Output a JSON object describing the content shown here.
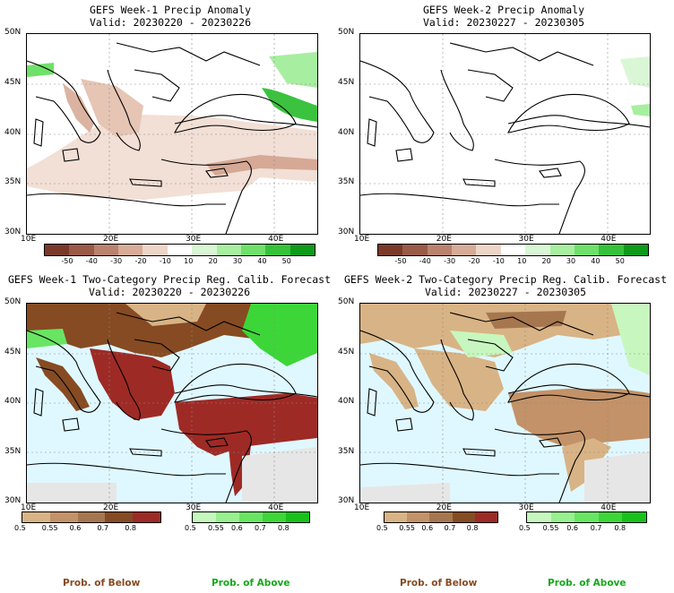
{
  "panels": [
    {
      "title": "GEFS Week-1 Precip Anomaly",
      "valid": "Valid: 20230220 - 20230226"
    },
    {
      "title": "GEFS Week-2 Precip Anomaly",
      "valid": "Valid: 20230227 - 20230305"
    },
    {
      "title": "GEFS Week-1 Two-Category Precip Reg. Calib. Forecast",
      "valid": "Valid: 20230220 - 20230226"
    },
    {
      "title": "GEFS Week-2 Two-Category Precip Reg. Calib. Forecast",
      "valid": "Valid: 20230227 - 20230305"
    }
  ],
  "axes": {
    "lat_labels": [
      "50N",
      "45N",
      "40N",
      "35N",
      "30N"
    ],
    "lon_labels": [
      "10E",
      "20E",
      "30E",
      "40E"
    ]
  },
  "anomaly_colorbar": {
    "labels": [
      "-50",
      "-40",
      "-30",
      "-20",
      "-10",
      "10",
      "20",
      "30",
      "40",
      "50"
    ],
    "colors": [
      "#7a3a2a",
      "#9a5a48",
      "#b9836f",
      "#d6ab98",
      "#edd5c8",
      "#ffffff",
      "#d9f7d4",
      "#a8eea0",
      "#6fe06a",
      "#35c23a",
      "#0e9a1a"
    ]
  },
  "below_colorbar": {
    "labels": [
      "0.5",
      "0.55",
      "0.6",
      "0.7",
      "0.8"
    ],
    "colors": [
      "#d8b385",
      "#c39268",
      "#a6774f",
      "#864b22",
      "#9e2a25"
    ],
    "title": "Prob. of Below"
  },
  "above_colorbar": {
    "labels": [
      "0.5",
      "0.55",
      "0.6",
      "0.7",
      "0.8"
    ],
    "colors": [
      "#c7f7be",
      "#98f08f",
      "#68e562",
      "#3dd638",
      "#17c21a"
    ],
    "title": "Prob. of Above"
  },
  "colors": {
    "sea": "#dff8ff",
    "desert": "#e6e6e6",
    "coast": "#000000",
    "grid": "#8a8a8a"
  }
}
